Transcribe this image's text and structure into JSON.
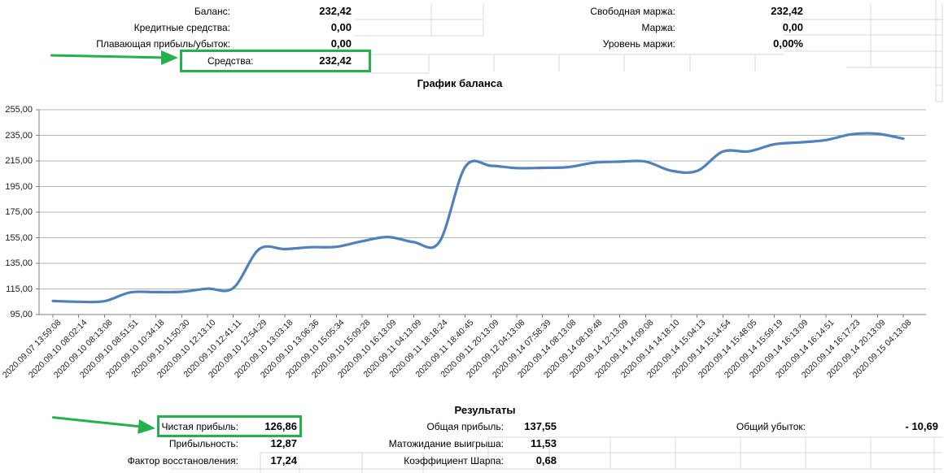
{
  "colors": {
    "highlight_green": "#23B14D",
    "line_blue": "#4F81BD",
    "gridline_gray": "#B5B5B5",
    "axis_gray": "#7F7F7F",
    "cell_border_gray": "#D9D9D9"
  },
  "account_summary": {
    "left_rows": [
      {
        "label": "Баланс:",
        "value": "232,42"
      },
      {
        "label": "Кредитные средства:",
        "value": "0,00"
      },
      {
        "label": "Плавающая прибыль/убыток:",
        "value": "0,00"
      }
    ],
    "equity_row": {
      "label": "Средства:",
      "value": "232,42"
    },
    "right_rows": [
      {
        "label": "Свободная маржа:",
        "value": "232,42"
      },
      {
        "label": "Маржа:",
        "value": "0,00"
      },
      {
        "label": "Уровень маржи:",
        "value": "0,00%"
      }
    ]
  },
  "chart_data": {
    "type": "line",
    "title": "График баланса",
    "xlabel": "",
    "ylabel": "",
    "legend": "none",
    "grid": "horizontal",
    "line_color": "#4F81BD",
    "ylim": [
      95,
      255
    ],
    "ytick_step": 20,
    "y_tick_labels": [
      "255,00",
      "235,00",
      "215,00",
      "195,00",
      "175,00",
      "155,00",
      "135,00",
      "115,00",
      "95,00"
    ],
    "categories": [
      "2020.09.07 13:59:08",
      "2020.09.10 08:02:14",
      "2020.09.10 08:13:08",
      "2020.09.10 08:51:51",
      "2020.09.10 10:34:18",
      "2020.09.10 11:50:30",
      "2020.09.10 12:13:10",
      "2020.09.10 12:41:11",
      "2020.09.10 12:54:29",
      "2020.09.10 13:03:18",
      "2020.09.10 13:06:36",
      "2020.09.10 15:05:34",
      "2020.09.10 15:09:28",
      "2020.09.10 16:13:09",
      "2020.09.11 04:13:09",
      "2020.09.11 18:18:24",
      "2020.09.11 18:40:45",
      "2020.09.11 20:13:09",
      "2020.09.12 04:13:08",
      "2020.09.14 07:58:39",
      "2020.09.14 08:13:08",
      "2020.09.14 08:19:48",
      "2020.09.14 12:13:09",
      "2020.09.14 14:09:08",
      "2020.09.14 14:18:10",
      "2020.09.14 15:04:13",
      "2020.09.14 15:14:54",
      "2020.09.14 15:48:05",
      "2020.09.14 15:59:19",
      "2020.09.14 16:13:09",
      "2020.09.14 16:14:51",
      "2020.09.14 16:17:23",
      "2020.09.14 20:13:09",
      "2020.09.15 04:13:08"
    ],
    "values": [
      105.56,
      105.0,
      105.4,
      112.3,
      112.5,
      112.8,
      115.2,
      115.7,
      146.0,
      146.1,
      147.6,
      147.9,
      152.3,
      155.6,
      151.6,
      151.7,
      210.3,
      211.2,
      209.4,
      209.6,
      210.2,
      213.6,
      214.4,
      214.5,
      207.3,
      207.2,
      222.3,
      222.4,
      228.0,
      229.5,
      231.3,
      235.8,
      236.2,
      232.42
    ]
  },
  "results": {
    "title": "Результаты",
    "left_rows": [
      {
        "label": "Чистая прибыль:",
        "value": "126,86"
      },
      {
        "label": "Прибыльность:",
        "value": "12,87"
      },
      {
        "label": "Фактор восстановления:",
        "value": "17,24"
      }
    ],
    "center_rows": [
      {
        "label": "Общая прибыль:",
        "value": "137,55"
      },
      {
        "label": "Матожидание выигрыша:",
        "value": "11,53"
      },
      {
        "label": "Коэффициент Шарпа:",
        "value": "0,68"
      }
    ],
    "right_rows": [
      {
        "label": "Общий убыток:",
        "value": "- 10,69"
      }
    ]
  }
}
